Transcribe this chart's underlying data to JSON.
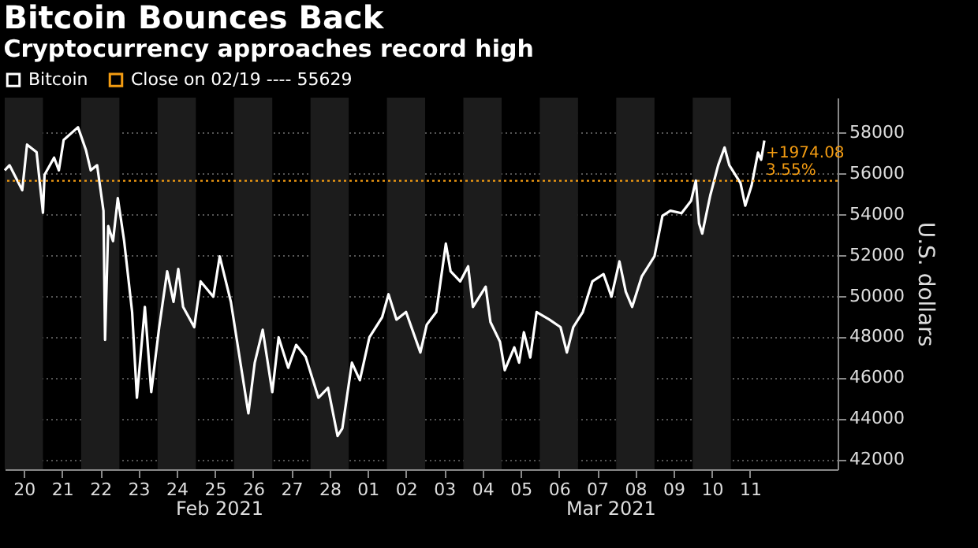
{
  "chart_data": {
    "type": "line",
    "title": "Bitcoin Bounces Back",
    "subtitle": "Cryptocurrency approaches record high",
    "ylabel": "U.S. dollars",
    "x": [
      "2021-02-20T00:00",
      "2021-02-20T03:00",
      "2021-02-20T11:00",
      "2021-02-20T14:00",
      "2021-02-20T20:00",
      "2021-02-21T00:00",
      "2021-02-21T01:00",
      "2021-02-21T07:00",
      "2021-02-21T10:00",
      "2021-02-21T13:00",
      "2021-02-21T22:00",
      "2021-02-22T03:00",
      "2021-02-22T06:00",
      "2021-02-22T10:00",
      "2021-02-22T14:00",
      "2021-02-22T15:00",
      "2021-02-22T17:00",
      "2021-02-22T20:00",
      "2021-02-22T23:00",
      "2021-02-23T03:00",
      "2021-02-23T08:00",
      "2021-02-23T11:00",
      "2021-02-23T16:00",
      "2021-02-23T20:00",
      "2021-02-24T01:00",
      "2021-02-24T06:00",
      "2021-02-24T10:00",
      "2021-02-24T13:00",
      "2021-02-24T16:00",
      "2021-02-24T23:00",
      "2021-02-25T03:00",
      "2021-02-25T11:00",
      "2021-02-25T15:00",
      "2021-02-25T22:00",
      "2021-02-26T04:00",
      "2021-02-26T09:00",
      "2021-02-26T13:00",
      "2021-02-26T18:00",
      "2021-02-27T00:00",
      "2021-02-27T04:00",
      "2021-02-27T10:00",
      "2021-02-27T15:00",
      "2021-02-27T21:00",
      "2021-02-28T05:00",
      "2021-02-28T11:00",
      "2021-02-28T17:00",
      "2021-02-28T20:00",
      "2021-03-01T02:00",
      "2021-03-01T07:00",
      "2021-03-01T13:00",
      "2021-03-01T21:00",
      "2021-03-02T01:00",
      "2021-03-02T06:00",
      "2021-03-02T12:00",
      "2021-03-02T21:00",
      "2021-03-03T01:00",
      "2021-03-03T07:00",
      "2021-03-03T13:00",
      "2021-03-03T16:00",
      "2021-03-03T22:00",
      "2021-03-04T03:00",
      "2021-03-04T06:00",
      "2021-03-04T14:00",
      "2021-03-04T17:00",
      "2021-03-04T23:00",
      "2021-03-05T02:00",
      "2021-03-05T08:00",
      "2021-03-05T11:00",
      "2021-03-05T14:00",
      "2021-03-05T18:00",
      "2021-03-05T22:00",
      "2021-03-06T06:00",
      "2021-03-06T13:00",
      "2021-03-06T17:00",
      "2021-03-06T21:00",
      "2021-03-07T03:00",
      "2021-03-07T09:00",
      "2021-03-07T16:00",
      "2021-03-07T21:00",
      "2021-03-08T02:00",
      "2021-03-08T06:00",
      "2021-03-08T10:00",
      "2021-03-08T16:00",
      "2021-03-09T00:00",
      "2021-03-09T05:00",
      "2021-03-09T10:00",
      "2021-03-09T17:00",
      "2021-03-09T23:00",
      "2021-03-10T02:00",
      "2021-03-10T04:00",
      "2021-03-10T06:00",
      "2021-03-10T11:00",
      "2021-03-10T16:00",
      "2021-03-10T20:00",
      "2021-03-10T23:00",
      "2021-03-11T06:00",
      "2021-03-11T09:00",
      "2021-03-11T13:00",
      "2021-03-11T17:00",
      "2021-03-11T19:00",
      "2021-03-11T21:00"
    ],
    "series": [
      {
        "name": "Bitcoin",
        "color": "#ffffff",
        "values": [
          56140,
          56390,
          55170,
          57400,
          57030,
          54060,
          55920,
          56760,
          56140,
          57630,
          58250,
          57130,
          56140,
          56390,
          54160,
          47840,
          53410,
          52670,
          54780,
          52670,
          49200,
          45000,
          49450,
          45280,
          48460,
          51190,
          49700,
          51310,
          49450,
          48460,
          50700,
          49950,
          51930,
          49700,
          46720,
          44240,
          46720,
          48330,
          45280,
          47960,
          46470,
          47590,
          47000,
          45000,
          45490,
          43130,
          43500,
          46720,
          45860,
          47960,
          48950,
          50070,
          48830,
          49200,
          47220,
          48580,
          49200,
          52550,
          51190,
          50700,
          51440,
          49450,
          50440,
          48710,
          47740,
          46350,
          47470,
          46720,
          48210,
          46970,
          49200,
          48830,
          48460,
          47220,
          48460,
          49200,
          50700,
          51060,
          49950,
          51680,
          50190,
          49450,
          50940,
          51930,
          53910,
          54160,
          54040,
          54650,
          55640,
          53540,
          53040,
          54900,
          56390,
          57260,
          56390,
          55520,
          54410,
          55400,
          57010,
          56660,
          57600
        ]
      }
    ],
    "xlim": [
      "2021-02-20T00:00",
      "2021-03-13T19:00"
    ],
    "xticks": [
      {
        "value": "2021-02-20T12:00",
        "label": "20"
      },
      {
        "value": "2021-02-21T12:00",
        "label": "21"
      },
      {
        "value": "2021-02-22T12:00",
        "label": "22"
      },
      {
        "value": "2021-02-23T12:00",
        "label": "23"
      },
      {
        "value": "2021-02-24T12:00",
        "label": "24"
      },
      {
        "value": "2021-02-25T12:00",
        "label": "25"
      },
      {
        "value": "2021-02-26T12:00",
        "label": "26"
      },
      {
        "value": "2021-02-27T12:00",
        "label": "27"
      },
      {
        "value": "2021-02-28T12:00",
        "label": "28"
      },
      {
        "value": "2021-03-01T12:00",
        "label": "01"
      },
      {
        "value": "2021-03-02T12:00",
        "label": "02"
      },
      {
        "value": "2021-03-03T12:00",
        "label": "03"
      },
      {
        "value": "2021-03-04T12:00",
        "label": "04"
      },
      {
        "value": "2021-03-05T12:00",
        "label": "05"
      },
      {
        "value": "2021-03-06T12:00",
        "label": "06"
      },
      {
        "value": "2021-03-07T12:00",
        "label": "07"
      },
      {
        "value": "2021-03-08T12:00",
        "label": "08"
      },
      {
        "value": "2021-03-09T12:00",
        "label": "09"
      },
      {
        "value": "2021-03-10T12:00",
        "label": "10"
      },
      {
        "value": "2021-03-11T12:00",
        "label": "11"
      }
    ],
    "ylim": [
      41500,
      59700
    ],
    "yticks": [
      42000,
      44000,
      46000,
      48000,
      50000,
      52000,
      54000,
      56000,
      58000
    ],
    "grid": "y",
    "legend": "top left",
    "ref_lines": [
      {
        "axis": "y",
        "value": 55629,
        "label": "Close on 02/19 ---- 55629",
        "color": "#f39c12",
        "line_style": "dotted"
      }
    ],
    "bands": [
      {
        "axis": "x",
        "from": "2021-02-20T00:00",
        "to": "2021-02-21T00:00",
        "color": "#1c1c1c"
      },
      {
        "axis": "x",
        "from": "2021-02-22T00:00",
        "to": "2021-02-23T00:00",
        "color": "#1c1c1c"
      },
      {
        "axis": "x",
        "from": "2021-02-24T00:00",
        "to": "2021-02-25T00:00",
        "color": "#1c1c1c"
      },
      {
        "axis": "x",
        "from": "2021-02-26T00:00",
        "to": "2021-02-27T00:00",
        "color": "#1c1c1c"
      },
      {
        "axis": "x",
        "from": "2021-02-28T00:00",
        "to": "2021-03-01T00:00",
        "color": "#1c1c1c"
      },
      {
        "axis": "x",
        "from": "2021-03-02T00:00",
        "to": "2021-03-03T00:00",
        "color": "#1c1c1c"
      },
      {
        "axis": "x",
        "from": "2021-03-04T00:00",
        "to": "2021-03-05T00:00",
        "color": "#1c1c1c"
      },
      {
        "axis": "x",
        "from": "2021-03-06T00:00",
        "to": "2021-03-07T00:00",
        "color": "#1c1c1c"
      },
      {
        "axis": "x",
        "from": "2021-03-08T00:00",
        "to": "2021-03-09T00:00",
        "color": "#1c1c1c"
      },
      {
        "axis": "x",
        "from": "2021-03-10T00:00",
        "to": "2021-03-11T00:00",
        "color": "#1c1c1c"
      }
    ],
    "annotations": [
      {
        "text": "+1974.08",
        "x": "2021-03-11T21:00",
        "y": 57600
      },
      {
        "text": "3.55%",
        "x": "2021-03-11T21:00",
        "y": 57600
      },
      "Feb 2021",
      "Mar 2021"
    ]
  }
}
